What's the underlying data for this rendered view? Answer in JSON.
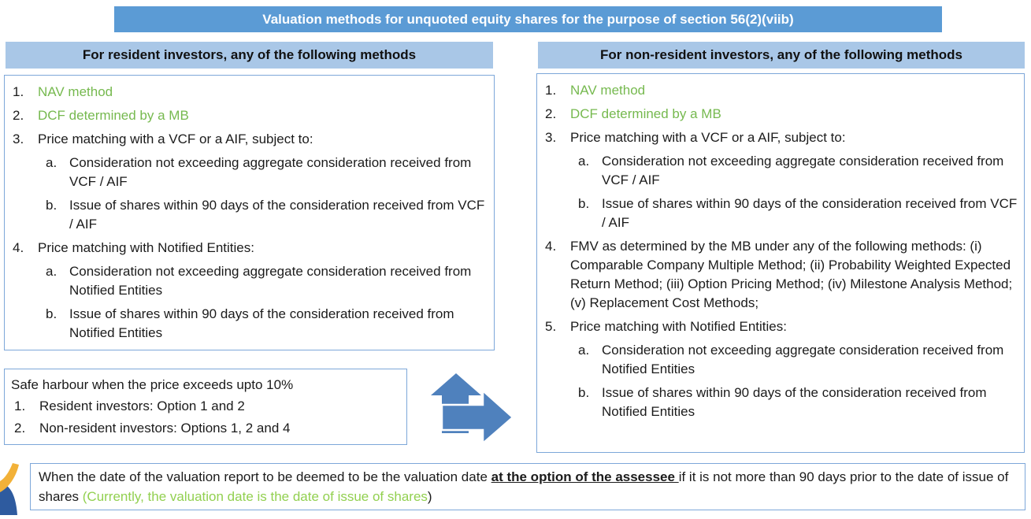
{
  "title": "Valuation methods for unquoted equity shares for the purpose of section 56(2)(viib)",
  "colors": {
    "banner_bg": "#5b9bd5",
    "header_bg": "#a9c7e7",
    "border": "#7da7d9",
    "arrow": "#4f81bd",
    "green_item": "#76b94f",
    "green_note": "#92d050",
    "logo_yellow": "#f2b138",
    "logo_blue": "#2e5b9f"
  },
  "left_panel": {
    "header": "For resident investors, any of the following methods",
    "items": [
      {
        "num": "1.",
        "text": "NAV method",
        "green": true
      },
      {
        "num": "2.",
        "text": "DCF determined by a MB",
        "green": true
      },
      {
        "num": "3.",
        "text": "Price matching with a VCF or a AIF, subject to:",
        "sub": [
          {
            "num": "a.",
            "text": "Consideration not exceeding aggregate consideration received from VCF / AIF"
          },
          {
            "num": "b.",
            "text": "Issue of shares within 90 days of the consideration received from VCF / AIF"
          }
        ]
      },
      {
        "num": "4.",
        "text": "Price matching with Notified Entities:",
        "sub": [
          {
            "num": "a.",
            "text": "Consideration not exceeding aggregate consideration received from Notified Entities"
          },
          {
            "num": "b.",
            "text": "Issue of shares within 90 days of the consideration received from Notified Entities"
          }
        ]
      }
    ]
  },
  "right_panel": {
    "header": "For non-resident investors, any of the following methods",
    "items": [
      {
        "num": "1.",
        "text": "NAV method",
        "green": true
      },
      {
        "num": "2.",
        "text": "DCF determined by a MB",
        "green": true
      },
      {
        "num": "3.",
        "text": "Price matching with a VCF or a AIF, subject to:",
        "sub": [
          {
            "num": "a.",
            "text": "Consideration not exceeding aggregate consideration received from VCF / AIF"
          },
          {
            "num": "b.",
            "text": "Issue of shares within 90 days of the consideration received from VCF / AIF"
          }
        ]
      },
      {
        "num": "4.",
        "text": "FMV as determined by the MB under any of the following methods: (i) Comparable Company Multiple Method; (ii) Probability Weighted Expected Return Method; (iii) Option Pricing Method; (iv) Milestone Analysis Method; (v) Replacement Cost Methods;"
      },
      {
        "num": "5.",
        "text": "Price matching with Notified Entities:",
        "sub": [
          {
            "num": "a.",
            "text": "Consideration not exceeding aggregate consideration received from Notified Entities"
          },
          {
            "num": "b.",
            "text": "Issue of shares within 90 days of the consideration received from Notified Entities"
          }
        ]
      }
    ]
  },
  "safe_harbour": {
    "title": "Safe harbour when the price exceeds upto 10%",
    "items": [
      {
        "num": "1.",
        "text": "Resident investors: Option 1 and 2"
      },
      {
        "num": "2.",
        "text": "Non-resident investors: Options 1, 2 and 4"
      }
    ]
  },
  "footnote": {
    "segments": [
      {
        "text": "When the date of the valuation report to be deemed to be the valuation date ",
        "style": "normal"
      },
      {
        "text": "at the option of the assessee ",
        "style": "bold-underline"
      },
      {
        "text": " if it is not more than 90 days prior to the date of issue of shares ",
        "style": "normal"
      },
      {
        "text": "(Currently, the valuation date is the date of issue of shares",
        "style": "green"
      },
      {
        "text": ")",
        "style": "normal"
      }
    ]
  }
}
